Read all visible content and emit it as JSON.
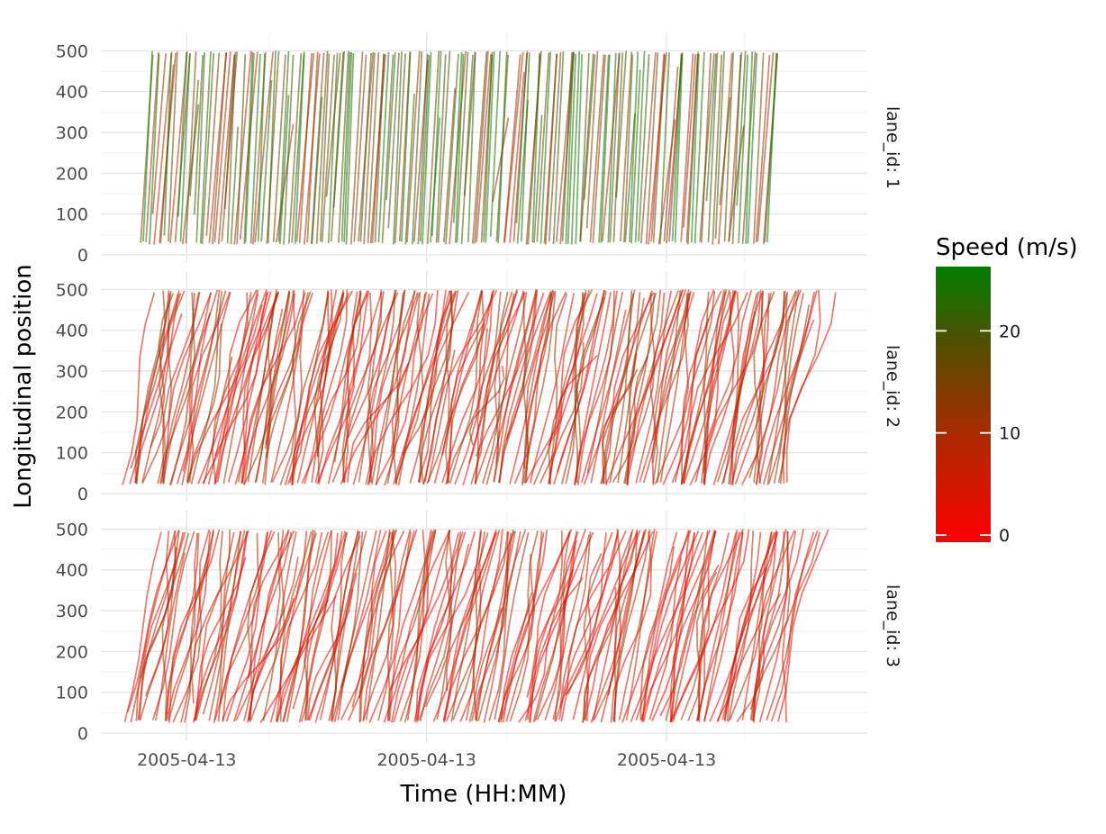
{
  "chart_data": {
    "type": "line",
    "subtype": "time-space trajectory diagram, faceted by lane",
    "xlabel": "Time (HH:MM)",
    "ylabel": "Longitudinal position",
    "x_tick_labels": [
      "2005-04-13",
      "2005-04-13",
      "2005-04-13"
    ],
    "y_ticks": [
      0,
      100,
      200,
      300,
      400,
      500
    ],
    "ylim": [
      -20,
      545
    ],
    "grid": true,
    "facet_labels": [
      "lane_id: 1",
      "lane_id: 2",
      "lane_id: 3"
    ],
    "legend": {
      "title": "Speed (m/s)",
      "type": "continuous colorbar",
      "placement": "right",
      "ticks": [
        0,
        10,
        20
      ],
      "range": [
        0,
        27
      ],
      "low_color": "#ff0000",
      "mid_color": "#8b2e00",
      "high_color": "#007f00"
    },
    "facets": [
      {
        "lane_id": 1,
        "vehicle_count_approx": 200,
        "entry_position": 25,
        "exit_position": 495,
        "time_start": 0.05,
        "time_end": 0.935,
        "dominant_speed_range": [
          10,
          27
        ],
        "trajectory_color": "green-brown (fast)"
      },
      {
        "lane_id": 2,
        "vehicle_count_approx": 230,
        "entry_position": 20,
        "exit_position": 495,
        "time_start": 0.03,
        "time_end": 0.955,
        "dominant_speed_range": [
          2,
          14
        ],
        "trajectory_color": "red (congested)"
      },
      {
        "lane_id": 3,
        "vehicle_count_approx": 210,
        "entry_position": 25,
        "exit_position": 495,
        "time_start": 0.03,
        "time_end": 0.945,
        "dominant_speed_range": [
          2,
          12
        ],
        "trajectory_color": "red (congested)"
      }
    ]
  }
}
